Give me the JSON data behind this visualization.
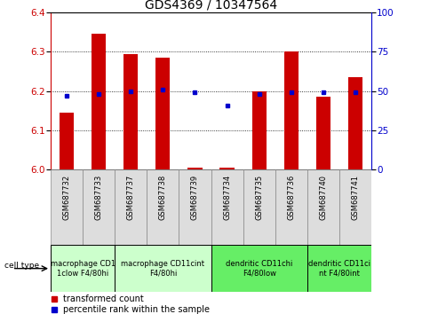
{
  "title": "GDS4369 / 10347564",
  "samples": [
    "GSM687732",
    "GSM687733",
    "GSM687737",
    "GSM687738",
    "GSM687739",
    "GSM687734",
    "GSM687735",
    "GSM687736",
    "GSM687740",
    "GSM687741"
  ],
  "red_values": [
    6.145,
    6.345,
    6.295,
    6.285,
    6.005,
    6.005,
    6.2,
    6.3,
    6.185,
    6.235
  ],
  "blue_values": [
    47,
    48,
    50,
    51,
    49,
    41,
    48,
    49,
    49,
    49
  ],
  "ylim_left": [
    6.0,
    6.4
  ],
  "ylim_right": [
    0,
    100
  ],
  "yticks_left": [
    6.0,
    6.1,
    6.2,
    6.3,
    6.4
  ],
  "yticks_right": [
    0,
    25,
    50,
    75,
    100
  ],
  "cell_type_groups": [
    {
      "label": "macrophage CD1\n1clow F4/80hi",
      "start": 0,
      "end": 2,
      "color": "#ccffcc"
    },
    {
      "label": "macrophage CD11cint\nF4/80hi",
      "start": 2,
      "end": 5,
      "color": "#ccffcc"
    },
    {
      "label": "dendritic CD11chi\nF4/80low",
      "start": 5,
      "end": 8,
      "color": "#66ee66"
    },
    {
      "label": "dendritic CD11ci\nnt F4/80int",
      "start": 8,
      "end": 10,
      "color": "#66ee66"
    }
  ],
  "red_color": "#cc0000",
  "blue_color": "#0000cc",
  "bar_bottom": 6.0,
  "bar_width": 0.45,
  "title_fontsize": 10,
  "tick_fontsize": 7.5,
  "sample_fontsize": 6,
  "cell_fontsize": 6,
  "legend_fontsize": 7
}
